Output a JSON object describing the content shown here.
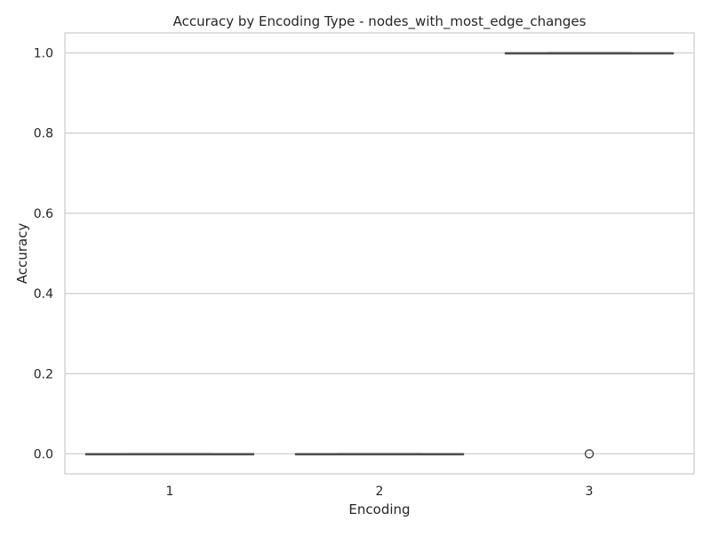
{
  "chart_data": {
    "type": "box",
    "title": "Accuracy by Encoding Type - nodes_with_most_edge_changes",
    "xlabel": "Encoding",
    "ylabel": "Accuracy",
    "categories": [
      "1",
      "2",
      "3"
    ],
    "ylim": [
      -0.05,
      1.05
    ],
    "yticks": [
      0.0,
      0.2,
      0.4,
      0.6,
      0.8,
      1.0
    ],
    "ytick_labels": [
      "0.0",
      "0.2",
      "0.4",
      "0.6",
      "0.8",
      "1.0"
    ],
    "grid": true,
    "boxes": [
      {
        "category": "1",
        "whisker_low": 0.0,
        "q1": 0.0,
        "median": 0.0,
        "q3": 0.0,
        "whisker_high": 0.0,
        "outliers": []
      },
      {
        "category": "2",
        "whisker_low": 0.0,
        "q1": 0.0,
        "median": 0.0,
        "q3": 0.0,
        "whisker_high": 0.0,
        "outliers": []
      },
      {
        "category": "3",
        "whisker_low": 1.0,
        "q1": 1.0,
        "median": 1.0,
        "q3": 1.0,
        "whisker_high": 1.0,
        "outliers": [
          0.0
        ]
      }
    ],
    "colors": {
      "grid": "#cccccc",
      "spine": "#cccccc",
      "box_line": "#4d4d4d",
      "outlier_edge": "#3f3f3f",
      "text": "#262626"
    }
  }
}
